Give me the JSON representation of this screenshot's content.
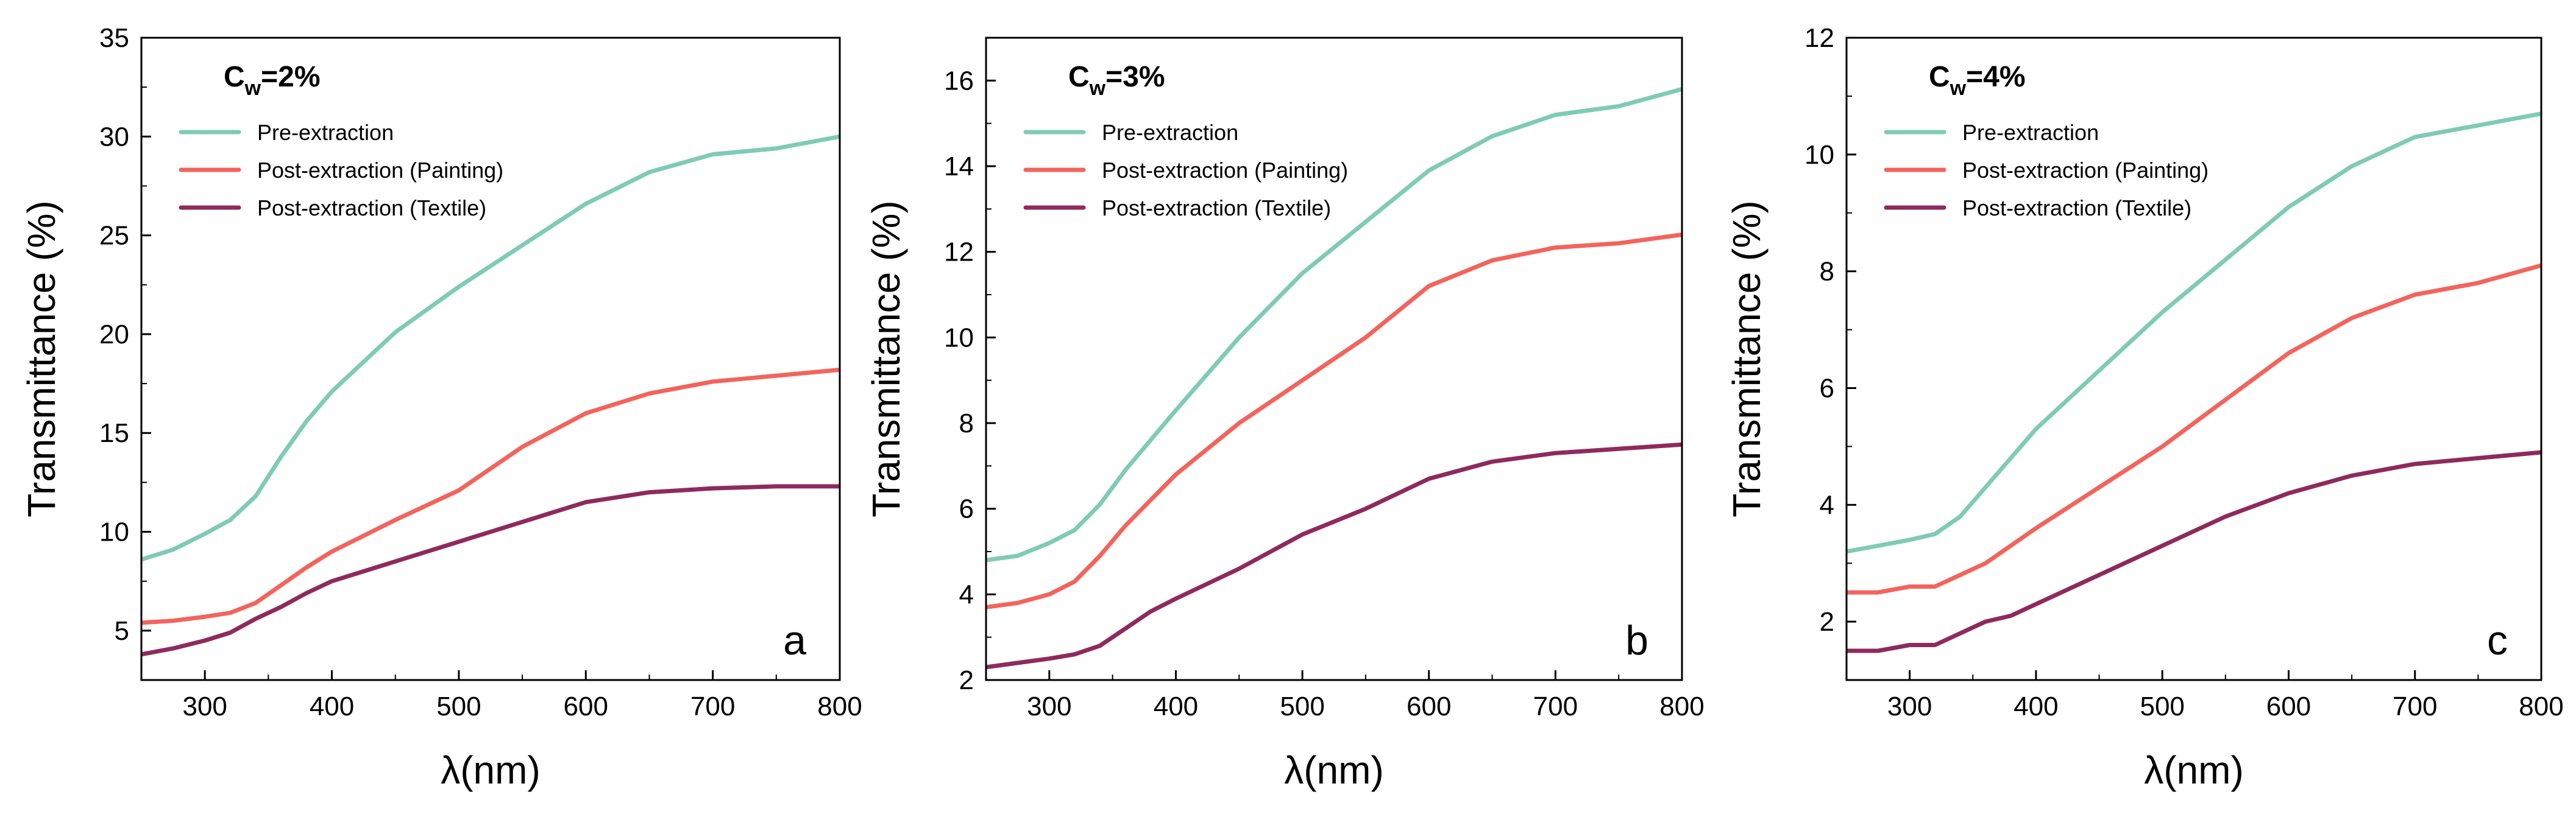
{
  "chart_data": [
    {
      "type": "line",
      "panel_label": "a",
      "annotation": {
        "main": "C",
        "sub": "w",
        "rest": "=2%"
      },
      "xlabel": "λ(nm)",
      "ylabel": "Transmittance (%)",
      "xlim": [
        250,
        800
      ],
      "ylim": [
        2.5,
        35
      ],
      "xticks": [
        300,
        400,
        500,
        600,
        700,
        800
      ],
      "yticks": [
        5,
        10,
        15,
        20,
        25,
        30,
        35
      ],
      "legend_position": "top-left",
      "series": [
        {
          "name": "Pre-extraction",
          "color": "#7fcbb5",
          "x": [
            250,
            275,
            300,
            320,
            340,
            360,
            380,
            400,
            450,
            500,
            550,
            600,
            650,
            700,
            750,
            800
          ],
          "y": [
            8.6,
            9.1,
            9.9,
            10.6,
            11.8,
            13.8,
            15.6,
            17.1,
            20.1,
            22.4,
            24.5,
            26.6,
            28.2,
            29.1,
            29.4,
            30.0
          ]
        },
        {
          "name": "Post-extraction (Painting)",
          "color": "#f2645c",
          "x": [
            250,
            275,
            300,
            320,
            340,
            360,
            380,
            400,
            450,
            500,
            550,
            600,
            650,
            700,
            750,
            800
          ],
          "y": [
            5.4,
            5.5,
            5.7,
            5.9,
            6.4,
            7.3,
            8.2,
            9.0,
            10.6,
            12.1,
            14.3,
            16.0,
            17.0,
            17.6,
            17.9,
            18.2
          ]
        },
        {
          "name": "Post-extraction (Textile)",
          "color": "#8e2a5c",
          "x": [
            250,
            275,
            300,
            320,
            340,
            360,
            380,
            400,
            450,
            500,
            550,
            600,
            650,
            700,
            750,
            800
          ],
          "y": [
            3.8,
            4.1,
            4.5,
            4.9,
            5.6,
            6.2,
            6.9,
            7.5,
            8.5,
            9.5,
            10.5,
            11.5,
            12.0,
            12.2,
            12.3,
            12.3
          ]
        }
      ]
    },
    {
      "type": "line",
      "panel_label": "b",
      "annotation": {
        "main": "C",
        "sub": "w",
        "rest": "=3%"
      },
      "xlabel": "λ(nm)",
      "ylabel": "Transmittance (%)",
      "xlim": [
        250,
        800
      ],
      "ylim": [
        2,
        17
      ],
      "xticks": [
        300,
        400,
        500,
        600,
        700,
        800
      ],
      "yticks": [
        2,
        4,
        6,
        8,
        10,
        12,
        14,
        16
      ],
      "legend_position": "top-left",
      "series": [
        {
          "name": "Pre-extraction",
          "color": "#7fcbb5",
          "x": [
            250,
            275,
            300,
            320,
            340,
            360,
            380,
            400,
            450,
            500,
            550,
            600,
            650,
            700,
            750,
            800
          ],
          "y": [
            4.8,
            4.9,
            5.2,
            5.5,
            6.1,
            6.9,
            7.6,
            8.3,
            10.0,
            11.5,
            12.7,
            13.9,
            14.7,
            15.2,
            15.4,
            15.8
          ]
        },
        {
          "name": "Post-extraction (Painting)",
          "color": "#f2645c",
          "x": [
            250,
            275,
            300,
            320,
            340,
            360,
            380,
            400,
            450,
            500,
            550,
            600,
            650,
            700,
            750,
            800
          ],
          "y": [
            3.7,
            3.8,
            4.0,
            4.3,
            4.9,
            5.6,
            6.2,
            6.8,
            8.0,
            9.0,
            10.0,
            11.2,
            11.8,
            12.1,
            12.2,
            12.4
          ]
        },
        {
          "name": "Post-extraction (Textile)",
          "color": "#8e2a5c",
          "x": [
            250,
            275,
            300,
            320,
            340,
            360,
            380,
            400,
            450,
            500,
            550,
            600,
            650,
            700,
            750,
            800
          ],
          "y": [
            2.3,
            2.4,
            2.5,
            2.6,
            2.8,
            3.2,
            3.6,
            3.9,
            4.6,
            5.4,
            6.0,
            6.7,
            7.1,
            7.3,
            7.4,
            7.5
          ]
        }
      ]
    },
    {
      "type": "line",
      "panel_label": "c",
      "annotation": {
        "main": "C",
        "sub": "w",
        "rest": "=4%"
      },
      "xlabel": "λ(nm)",
      "ylabel": "Transmittance (%)",
      "xlim": [
        250,
        800
      ],
      "ylim": [
        1,
        12
      ],
      "xticks": [
        300,
        400,
        500,
        600,
        700,
        800
      ],
      "yticks": [
        2,
        4,
        6,
        8,
        10,
        12
      ],
      "legend_position": "top-left",
      "series": [
        {
          "name": "Pre-extraction",
          "color": "#7fcbb5",
          "x": [
            250,
            275,
            300,
            320,
            340,
            360,
            380,
            400,
            450,
            500,
            550,
            600,
            650,
            700,
            750,
            800
          ],
          "y": [
            3.2,
            3.3,
            3.4,
            3.5,
            3.8,
            4.3,
            4.8,
            5.3,
            6.3,
            7.3,
            8.2,
            9.1,
            9.8,
            10.3,
            10.5,
            10.7
          ]
        },
        {
          "name": "Post-extraction (Painting)",
          "color": "#f2645c",
          "x": [
            250,
            275,
            300,
            320,
            340,
            360,
            380,
            400,
            450,
            500,
            550,
            600,
            650,
            700,
            750,
            800
          ],
          "y": [
            2.5,
            2.5,
            2.6,
            2.6,
            2.8,
            3.0,
            3.3,
            3.6,
            4.3,
            5.0,
            5.8,
            6.6,
            7.2,
            7.6,
            7.8,
            8.1
          ]
        },
        {
          "name": "Post-extraction (Textile)",
          "color": "#8e2a5c",
          "x": [
            250,
            275,
            300,
            320,
            340,
            360,
            380,
            400,
            450,
            500,
            550,
            600,
            650,
            700,
            750,
            800
          ],
          "y": [
            1.5,
            1.5,
            1.6,
            1.6,
            1.8,
            2.0,
            2.1,
            2.3,
            2.8,
            3.3,
            3.8,
            4.2,
            4.5,
            4.7,
            4.8,
            4.9
          ]
        }
      ]
    }
  ]
}
